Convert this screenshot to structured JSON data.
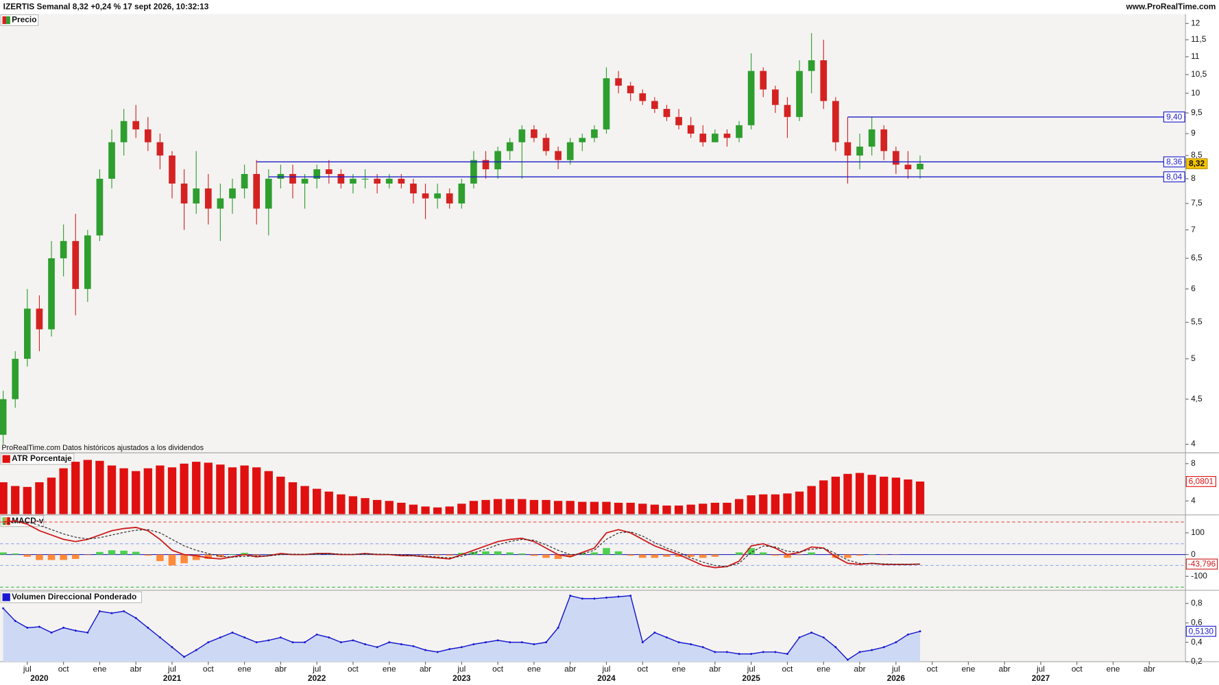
{
  "header": {
    "title": "IZERTIS Semanal 8,32 +0,24 % 17 sept 2026, 10:32:13",
    "site": "www.ProRealTime.com"
  },
  "chart_data": [
    {
      "type": "candlestick",
      "title": "Precio",
      "note": "ProRealTime.com Datos históricos ajustados a los dividendos",
      "log_scale": true,
      "x": [
        "2020-05",
        "2020-06",
        "2020-07",
        "2020-08",
        "2020-09",
        "2020-10",
        "2020-11",
        "2020-12",
        "2021-01",
        "2021-02",
        "2021-03",
        "2021-04",
        "2021-05",
        "2021-06",
        "2021-07",
        "2021-08",
        "2021-09",
        "2021-10",
        "2021-11",
        "2021-12",
        "2022-01",
        "2022-02",
        "2022-03",
        "2022-04",
        "2022-05",
        "2022-06",
        "2022-07",
        "2022-08",
        "2022-09",
        "2022-10",
        "2022-11",
        "2022-12",
        "2023-01",
        "2023-02",
        "2023-03",
        "2023-04",
        "2023-05",
        "2023-06",
        "2023-07",
        "2023-08",
        "2023-09",
        "2023-10",
        "2023-11",
        "2023-12",
        "2024-01",
        "2024-02",
        "2024-03",
        "2024-04",
        "2024-05",
        "2024-06",
        "2024-07",
        "2024-08",
        "2024-09",
        "2024-10",
        "2024-11",
        "2024-12",
        "2025-01",
        "2025-02",
        "2025-03",
        "2025-04",
        "2025-05",
        "2025-06",
        "2025-07",
        "2025-08",
        "2025-09",
        "2025-10",
        "2025-11",
        "2025-12",
        "2026-01",
        "2026-02",
        "2026-03",
        "2026-04",
        "2026-05",
        "2026-06",
        "2026-07",
        "2026-08",
        "2026-09"
      ],
      "open": [
        4.1,
        4.5,
        5.0,
        5.7,
        5.4,
        6.5,
        6.8,
        6.0,
        6.9,
        8.0,
        8.8,
        9.3,
        9.1,
        8.8,
        8.5,
        7.9,
        7.5,
        7.8,
        7.4,
        7.6,
        7.8,
        8.1,
        7.4,
        8.0,
        8.1,
        7.9,
        8.0,
        8.2,
        8.1,
        7.9,
        8.0,
        8.0,
        7.9,
        8.0,
        7.9,
        7.7,
        7.6,
        7.7,
        7.5,
        7.9,
        8.4,
        8.2,
        8.6,
        8.8,
        9.1,
        8.9,
        8.6,
        8.4,
        8.8,
        8.9,
        9.1,
        10.4,
        10.2,
        10.0,
        9.8,
        9.6,
        9.4,
        9.2,
        9.0,
        8.8,
        9.0,
        8.9,
        9.2,
        10.6,
        10.1,
        9.7,
        9.4,
        10.6,
        10.9,
        9.8,
        8.8,
        8.5,
        8.7,
        9.1,
        8.6,
        8.3,
        8.2
      ],
      "high": [
        4.6,
        5.1,
        6.0,
        5.9,
        6.8,
        7.1,
        7.3,
        7.0,
        8.2,
        9.1,
        9.6,
        9.7,
        9.4,
        9.0,
        8.6,
        8.2,
        8.6,
        8.1,
        7.9,
        8.0,
        8.3,
        8.4,
        8.2,
        8.3,
        8.3,
        8.1,
        8.3,
        8.4,
        8.2,
        8.1,
        8.2,
        8.1,
        8.1,
        8.1,
        8.0,
        7.9,
        7.9,
        7.8,
        8.0,
        8.6,
        8.6,
        8.7,
        8.9,
        9.2,
        9.2,
        9.0,
        8.7,
        8.9,
        9.0,
        9.2,
        10.7,
        10.6,
        10.3,
        10.1,
        9.9,
        9.7,
        9.6,
        9.4,
        9.2,
        9.1,
        9.1,
        9.3,
        11.1,
        10.7,
        10.2,
        9.9,
        10.9,
        11.7,
        11.5,
        9.9,
        9.4,
        9.0,
        9.4,
        9.2,
        8.7,
        8.6,
        8.5
      ],
      "low": [
        4.0,
        4.4,
        4.9,
        5.1,
        5.3,
        6.2,
        5.6,
        5.8,
        6.8,
        7.8,
        8.5,
        8.9,
        8.6,
        8.2,
        7.6,
        7.0,
        7.3,
        7.1,
        6.8,
        7.3,
        7.6,
        7.1,
        6.9,
        7.8,
        7.6,
        7.4,
        7.8,
        7.9,
        7.8,
        7.7,
        7.8,
        7.7,
        7.8,
        7.8,
        7.5,
        7.2,
        7.4,
        7.4,
        7.4,
        7.8,
        8.0,
        8.0,
        8.4,
        8.0,
        8.8,
        8.5,
        8.2,
        8.3,
        8.6,
        8.8,
        9.0,
        10.0,
        9.8,
        9.7,
        9.5,
        9.3,
        9.1,
        8.9,
        8.7,
        8.8,
        8.7,
        8.8,
        9.1,
        9.9,
        9.5,
        8.9,
        9.3,
        10.0,
        9.6,
        8.6,
        7.9,
        8.2,
        8.5,
        8.4,
        8.1,
        8.0,
        8.0
      ],
      "close": [
        4.5,
        5.0,
        5.7,
        5.4,
        6.5,
        6.8,
        6.0,
        6.9,
        8.0,
        8.8,
        9.3,
        9.1,
        8.8,
        8.5,
        7.9,
        7.5,
        7.8,
        7.4,
        7.6,
        7.8,
        8.1,
        7.4,
        8.0,
        8.1,
        7.9,
        8.0,
        8.2,
        8.1,
        7.9,
        8.0,
        8.0,
        7.9,
        8.0,
        7.9,
        7.7,
        7.6,
        7.7,
        7.5,
        7.9,
        8.4,
        8.2,
        8.6,
        8.8,
        9.1,
        8.9,
        8.6,
        8.4,
        8.8,
        8.9,
        9.1,
        10.4,
        10.2,
        10.0,
        9.8,
        9.6,
        9.4,
        9.2,
        9.0,
        8.8,
        9.0,
        8.9,
        9.2,
        10.6,
        10.1,
        9.7,
        9.4,
        10.6,
        10.9,
        9.8,
        8.8,
        8.5,
        8.7,
        9.1,
        8.6,
        8.3,
        8.2,
        8.32
      ],
      "last_label": "8,32",
      "colors": {
        "up": "#2e9e2e",
        "down": "#d42222"
      },
      "hlines": [
        {
          "value": 9.4,
          "label": "9,40",
          "start": "2026-03"
        },
        {
          "value": 8.36,
          "label": "8,36",
          "start": "2022-02"
        },
        {
          "value": 8.04,
          "label": "8,04",
          "start": "2022-03"
        }
      ],
      "hline_color": "#1c1cc8",
      "ylim": [
        3.92,
        12.3
      ],
      "yticks": [
        12,
        {
          "value": 11.5,
          "label": "11,5"
        },
        11,
        {
          "value": 10.5,
          "label": "10,5"
        },
        10,
        {
          "value": 9.5,
          "label": "9,5"
        },
        9,
        {
          "value": 8.5,
          "label": "8,5"
        },
        8,
        {
          "value": 7.5,
          "label": "7,5"
        },
        7,
        {
          "value": 6.5,
          "label": "6,5"
        },
        6,
        {
          "value": 5.5,
          "label": "5,5"
        },
        5,
        {
          "value": 4.5,
          "label": "4,5"
        },
        4
      ],
      "xlim": [
        "2020-05",
        "2028-07"
      ],
      "xticks": [
        {
          "value": "2020-07",
          "label": "jul"
        },
        {
          "value": "2020-10",
          "label": "oct"
        },
        {
          "value": "2021-01",
          "label": "ene"
        },
        {
          "value": "2021-04",
          "label": "abr"
        },
        {
          "value": "2021-07",
          "label": "jul"
        },
        {
          "value": "2021-10",
          "label": "oct"
        },
        {
          "value": "2022-01",
          "label": "ene"
        },
        {
          "value": "2022-04",
          "label": "abr"
        },
        {
          "value": "2022-07",
          "label": "jul"
        },
        {
          "value": "2022-10",
          "label": "oct"
        },
        {
          "value": "2023-01",
          "label": "ene"
        },
        {
          "value": "2023-04",
          "label": "abr"
        },
        {
          "value": "2023-07",
          "label": "jul"
        },
        {
          "value": "2023-10",
          "label": "oct"
        },
        {
          "value": "2024-01",
          "label": "ene"
        },
        {
          "value": "2024-04",
          "label": "abr"
        },
        {
          "value": "2024-07",
          "label": "jul"
        },
        {
          "value": "2024-10",
          "label": "oct"
        },
        {
          "value": "2025-01",
          "label": "ene"
        },
        {
          "value": "2025-04",
          "label": "abr"
        },
        {
          "value": "2025-07",
          "label": "jul"
        },
        {
          "value": "2025-10",
          "label": "oct"
        },
        {
          "value": "2026-01",
          "label": "ene"
        },
        {
          "value": "2026-04",
          "label": "abr"
        },
        {
          "value": "2026-07",
          "label": "jul"
        },
        {
          "value": "2026-10",
          "label": "oct"
        },
        {
          "value": "2027-01",
          "label": "ene"
        },
        {
          "value": "2027-04",
          "label": "abr"
        },
        {
          "value": "2027-07",
          "label": "jul"
        },
        {
          "value": "2027-10",
          "label": "oct"
        },
        {
          "value": "2028-01",
          "label": "ene"
        },
        {
          "value": "2028-04",
          "label": "abr"
        }
      ],
      "year_labels": [
        {
          "value": "2020-08",
          "label": "2020"
        },
        {
          "value": "2021-07",
          "label": "2021"
        },
        {
          "value": "2022-07",
          "label": "2022"
        },
        {
          "value": "2023-07",
          "label": "2023"
        },
        {
          "value": "2024-07",
          "label": "2024"
        },
        {
          "value": "2025-07",
          "label": "2025"
        },
        {
          "value": "2026-07",
          "label": "2026"
        },
        {
          "value": "2027-07",
          "label": "2027"
        }
      ]
    },
    {
      "type": "bar",
      "title": "ATR Porcentaje",
      "color": "#e01010",
      "values": [
        6.0,
        5.6,
        5.5,
        6.0,
        6.5,
        7.5,
        8.2,
        8.4,
        8.3,
        7.8,
        7.5,
        7.2,
        7.5,
        7.8,
        7.6,
        8.0,
        8.2,
        8.1,
        7.9,
        7.6,
        7.8,
        7.6,
        7.2,
        6.6,
        6.0,
        5.6,
        5.3,
        5.0,
        4.7,
        4.5,
        4.3,
        4.1,
        4.0,
        3.8,
        3.6,
        3.4,
        3.3,
        3.4,
        3.7,
        4.0,
        4.1,
        4.2,
        4.2,
        4.2,
        4.1,
        4.1,
        4.0,
        4.0,
        3.9,
        3.9,
        3.9,
        3.8,
        3.8,
        3.7,
        3.6,
        3.5,
        3.5,
        3.6,
        3.7,
        3.8,
        3.8,
        4.2,
        4.6,
        4.7,
        4.7,
        4.8,
        5.0,
        5.6,
        6.2,
        6.6,
        6.9,
        7.0,
        6.8,
        6.6,
        6.5,
        6.3,
        6.0801
      ],
      "last_label": "6,0801",
      "ylim": [
        2.58,
        9.08
      ],
      "yticks": [
        8,
        6,
        4
      ]
    },
    {
      "type": "line",
      "title": "MACD-v",
      "series": [
        {
          "color": "#cc1a1a",
          "values": [
            150,
            155,
            140,
            110,
            90,
            70,
            60,
            70,
            90,
            110,
            120,
            125,
            110,
            70,
            20,
            0,
            -5,
            -15,
            -20,
            -10,
            0,
            -10,
            -5,
            5,
            0,
            0,
            5,
            5,
            0,
            0,
            5,
            0,
            0,
            -5,
            -5,
            -10,
            -15,
            -20,
            0,
            20,
            40,
            60,
            70,
            75,
            60,
            30,
            0,
            -10,
            10,
            30,
            100,
            115,
            100,
            70,
            40,
            20,
            0,
            -25,
            -50,
            -60,
            -55,
            -30,
            40,
            50,
            30,
            0,
            10,
            35,
            30,
            -10,
            -40,
            -45,
            -40,
            -45,
            -45,
            -45,
            -43.796
          ],
          "last_label": "-43,796"
        },
        {
          "color": "#222222",
          "dash": true,
          "values": [
            140,
            150,
            150,
            135,
            115,
            95,
            80,
            72,
            78,
            90,
            102,
            112,
            115,
            100,
            70,
            40,
            20,
            5,
            -8,
            -12,
            -8,
            -6,
            -6,
            0,
            2,
            1,
            3,
            4,
            2,
            1,
            3,
            2,
            1,
            -2,
            -4,
            -7,
            -11,
            -15,
            -8,
            8,
            25,
            45,
            60,
            70,
            66,
            45,
            20,
            0,
            3,
            20,
            70,
            100,
            105,
            85,
            55,
            30,
            10,
            -15,
            -35,
            -50,
            -55,
            -40,
            10,
            40,
            35,
            15,
            12,
            25,
            30,
            5,
            -25,
            -40,
            -42,
            -43,
            -44,
            -45,
            -44
          ]
        }
      ],
      "histogram": {
        "colors": [
          "#4fd04f",
          "#ff8a3a"
        ],
        "values": [
          10,
          5,
          -10,
          -25,
          -25,
          -25,
          -20,
          -2,
          12,
          20,
          18,
          13,
          -5,
          -30,
          -50,
          -40,
          -25,
          -20,
          -12,
          2,
          8,
          -4,
          1,
          5,
          -2,
          -1,
          2,
          1,
          -2,
          -1,
          2,
          -2,
          -1,
          -3,
          -1,
          -3,
          -4,
          -5,
          8,
          12,
          15,
          15,
          10,
          5,
          -6,
          -15,
          -20,
          -10,
          7,
          10,
          30,
          15,
          -5,
          -15,
          -15,
          -10,
          -10,
          -10,
          -15,
          -10,
          0,
          10,
          30,
          10,
          -5,
          -15,
          -2,
          10,
          0,
          -15,
          -15,
          -5,
          2,
          -2,
          -1,
          0,
          0
        ]
      },
      "levels": [
        {
          "value": 150,
          "color": "#e05050"
        },
        {
          "value": 50,
          "color": "#9aaaf0"
        },
        {
          "value": -50,
          "color": "#9aaaf0"
        },
        {
          "value": -150,
          "color": "#3cb43c"
        }
      ],
      "zero_color": "#2020c0",
      "ylim": [
        -157,
        179
      ],
      "yticks": [
        100,
        0,
        -100
      ]
    },
    {
      "type": "area",
      "title": "Volumen Direccional Ponderado",
      "color": "#1818d0",
      "fill": "#cdd9f4",
      "values": [
        0.75,
        0.62,
        0.55,
        0.56,
        0.5,
        0.55,
        0.52,
        0.5,
        0.72,
        0.7,
        0.72,
        0.65,
        0.55,
        0.45,
        0.35,
        0.25,
        0.32,
        0.4,
        0.45,
        0.5,
        0.45,
        0.4,
        0.42,
        0.45,
        0.4,
        0.4,
        0.48,
        0.45,
        0.4,
        0.42,
        0.38,
        0.35,
        0.4,
        0.38,
        0.36,
        0.32,
        0.3,
        0.33,
        0.35,
        0.38,
        0.4,
        0.42,
        0.4,
        0.4,
        0.38,
        0.4,
        0.55,
        0.88,
        0.85,
        0.85,
        0.86,
        0.87,
        0.88,
        0.4,
        0.5,
        0.45,
        0.4,
        0.38,
        0.35,
        0.3,
        0.3,
        0.28,
        0.28,
        0.3,
        0.3,
        0.28,
        0.45,
        0.5,
        0.45,
        0.35,
        0.22,
        0.3,
        0.32,
        0.35,
        0.4,
        0.48,
        0.513
      ],
      "last_label": "0,5130",
      "ylim": [
        0.2,
        0.92
      ],
      "yticks": [
        {
          "value": 0.8,
          "label": "0,8"
        },
        {
          "value": 0.6,
          "label": "0,6"
        },
        {
          "value": 0.4,
          "label": "0,4"
        },
        {
          "value": 0.2,
          "label": "0,2"
        }
      ]
    }
  ]
}
